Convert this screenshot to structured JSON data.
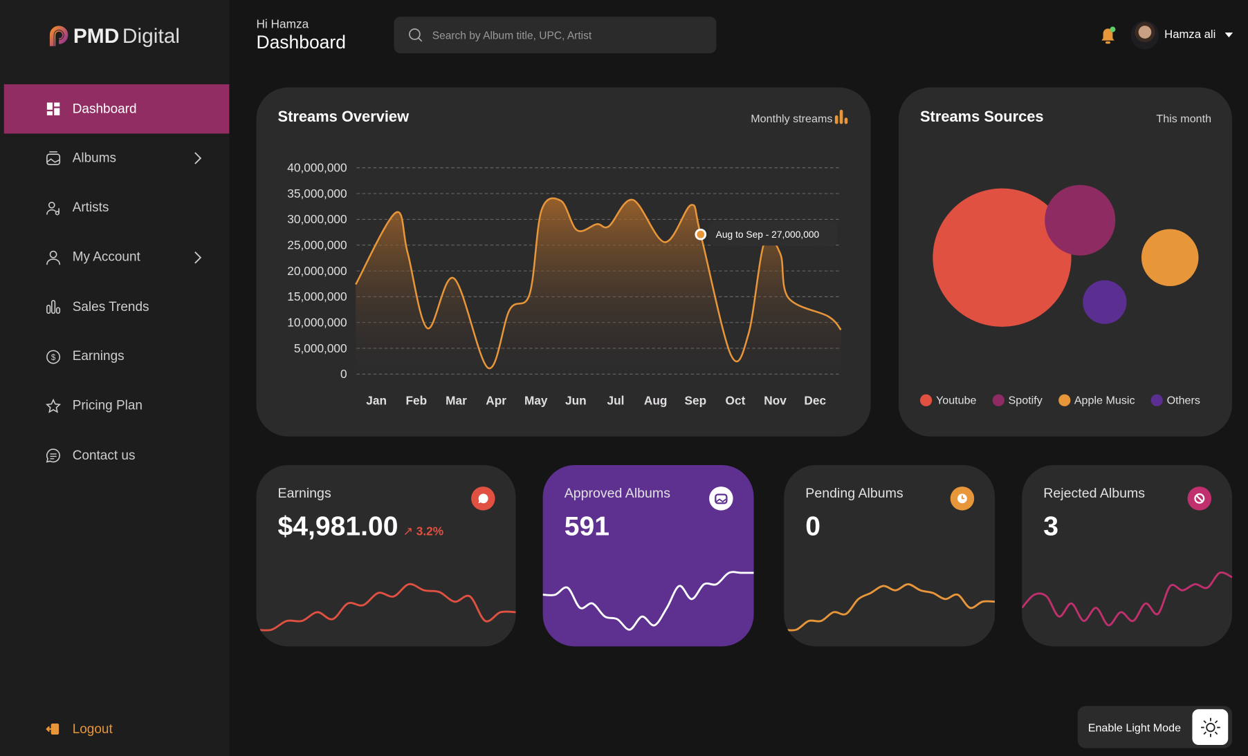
{
  "brand": {
    "bold": "PMD",
    "light": "Digital"
  },
  "sidebar": {
    "items": [
      {
        "label": "Dashboard",
        "icon": "grid-icon",
        "active": true
      },
      {
        "label": "Albums",
        "icon": "album-icon",
        "chevron": true
      },
      {
        "label": "Artists",
        "icon": "artist-icon"
      },
      {
        "label": "My Account",
        "icon": "user-icon",
        "chevron": true
      },
      {
        "label": "Sales Trends",
        "icon": "bar-chart-icon"
      },
      {
        "label": "Earnings",
        "icon": "dollar-icon"
      },
      {
        "label": "Pricing Plan",
        "icon": "star-icon"
      },
      {
        "label": "Contact us",
        "icon": "chat-icon"
      }
    ],
    "logout": "Logout"
  },
  "header": {
    "greeting": "Hi Hamza",
    "title": "Dashboard",
    "search_placeholder": "Search by Album title, UPC, Artist",
    "user_name": "Hamza ali"
  },
  "overview": {
    "title": "Streams Overview",
    "filter": "Monthly streams",
    "tooltip": "Aug to Sep - 27,000,000"
  },
  "sources": {
    "title": "Streams Sources",
    "filter": "This month"
  },
  "colors": {
    "accent": "#922d63",
    "orange": "#e8963a",
    "red": "#e05142",
    "purple": "#5e3191"
  },
  "chart_data": [
    {
      "type": "area",
      "title": "Streams Overview",
      "categories": [
        "Jan",
        "Feb",
        "Mar",
        "Apr",
        "May",
        "Jun",
        "Jul",
        "Aug",
        "Sep",
        "Oct",
        "Nov",
        "Dec"
      ],
      "y_ticks": [
        "40,000,000",
        "35,000,000",
        "30,000,000",
        "25,000,000",
        "20,000,000",
        "15,000,000",
        "10,000,000",
        "5,000,000",
        "0"
      ],
      "ylim": [
        0,
        40000000
      ],
      "x": [
        -0.52,
        0.48,
        0.78,
        1.28,
        1.94,
        2.8,
        3.34,
        3.84,
        4.14,
        4.63,
        5.03,
        5.53,
        5.83,
        6.43,
        7.23,
        7.89,
        8.13,
        8.89,
        9.33,
        9.73,
        10.13,
        10.33,
        11.33,
        11.65
      ],
      "values": [
        17300000,
        31200000,
        23500000,
        8800000,
        18500000,
        1100000,
        12400000,
        15400000,
        31700000,
        33500000,
        27800000,
        29000000,
        28600000,
        33700000,
        25500000,
        32700000,
        27000000,
        3600000,
        7700000,
        25500000,
        23200000,
        14700000,
        11100000,
        8500000
      ],
      "highlight_index": 16
    },
    {
      "type": "bubble",
      "title": "Streams Sources",
      "series": [
        {
          "name": "Youtube",
          "value": 100,
          "color": "#e05142"
        },
        {
          "name": "Spotify",
          "value": 26,
          "color": "#8e2b62"
        },
        {
          "name": "Apple Music",
          "value": 17,
          "color": "#e8963a"
        },
        {
          "name": "Others",
          "value": 10,
          "color": "#5b2e91"
        }
      ]
    }
  ],
  "stats": [
    {
      "title": "Earnings",
      "value": "$4,981.00",
      "change": "3.2%",
      "color": "#e05142",
      "spark": [
        10,
        10,
        20,
        20,
        30,
        22,
        40,
        38,
        52,
        48,
        62,
        55,
        53,
        42,
        48,
        20,
        30,
        30
      ]
    },
    {
      "title": "Approved Albums",
      "value": "591",
      "color": "#ffffff",
      "spark": [
        50,
        50,
        58,
        35,
        40,
        25,
        22,
        10,
        25,
        15,
        35,
        60,
        45,
        62,
        62,
        75,
        75,
        75
      ]
    },
    {
      "title": "Pending Albums",
      "value": "0",
      "color": "#e8963a",
      "spark": [
        10,
        10,
        20,
        20,
        30,
        28,
        45,
        52,
        60,
        55,
        62,
        55,
        52,
        45,
        50,
        35,
        42,
        42
      ]
    },
    {
      "title": "Rejected Albums",
      "value": "3",
      "color": "#c0306e",
      "spark": [
        35,
        50,
        48,
        25,
        40,
        20,
        35,
        15,
        30,
        20,
        40,
        28,
        60,
        55,
        62,
        58,
        75,
        70
      ]
    }
  ],
  "theme_toggle": "Enable Light Mode"
}
